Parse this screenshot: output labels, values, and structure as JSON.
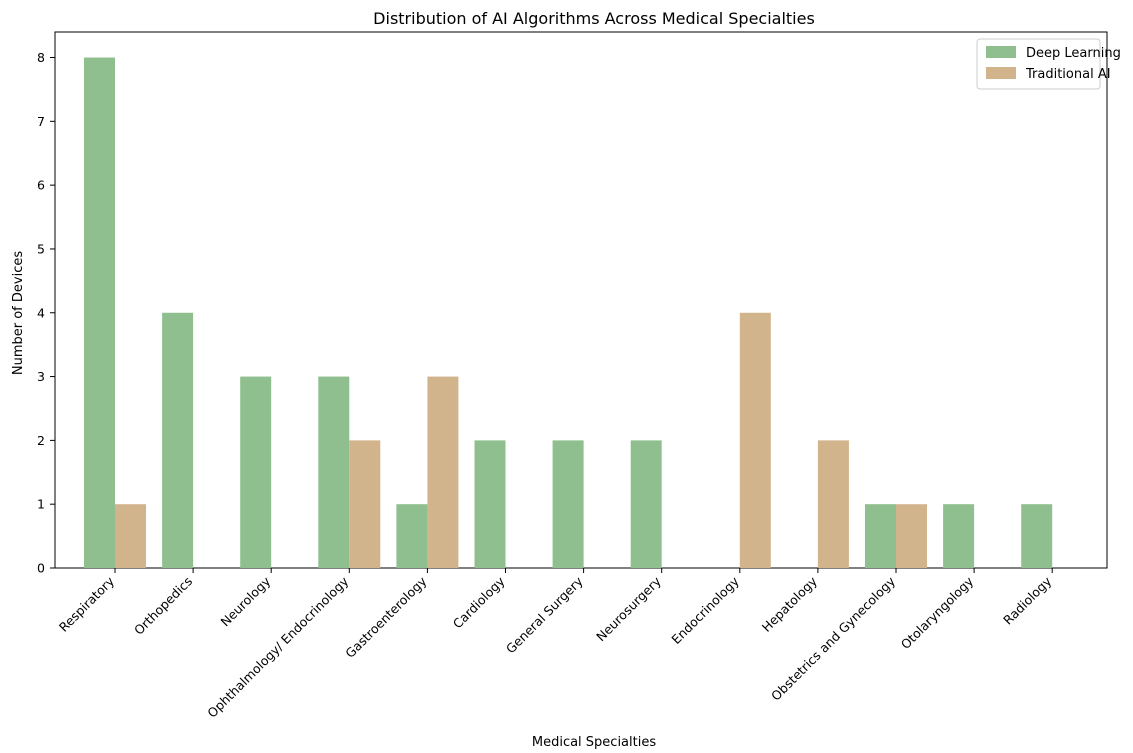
{
  "chart_data": {
    "type": "bar",
    "title": "Distribution of AI Algorithms Across Medical Specialties",
    "xlabel": "Medical Specialties",
    "ylabel": "Number of Devices",
    "categories": [
      "Respiratory",
      "Orthopedics",
      "Neurology",
      "Ophthalmology/ Endocrinology",
      "Gastroenterology",
      "Cardiology",
      "General Surgery",
      "Neurosurgery",
      "Endocrinology",
      "Hepatology",
      "Obstetrics and Gynecology",
      "Otolaryngology",
      "Radiology"
    ],
    "series": [
      {
        "name": "Deep Learning",
        "color": "#8fbf8f",
        "values": [
          8,
          4,
          3,
          3,
          1,
          2,
          2,
          2,
          0,
          0,
          1,
          1,
          1
        ]
      },
      {
        "name": "Traditional AI",
        "color": "#d2b48c",
        "values": [
          1,
          0,
          0,
          2,
          3,
          0,
          0,
          0,
          4,
          2,
          1,
          0,
          0
        ]
      }
    ],
    "ylim": [
      0,
      8.4
    ],
    "yticks": [
      0,
      1,
      2,
      3,
      4,
      5,
      6,
      7,
      8
    ],
    "legend_position": "top-right",
    "grid": false
  }
}
